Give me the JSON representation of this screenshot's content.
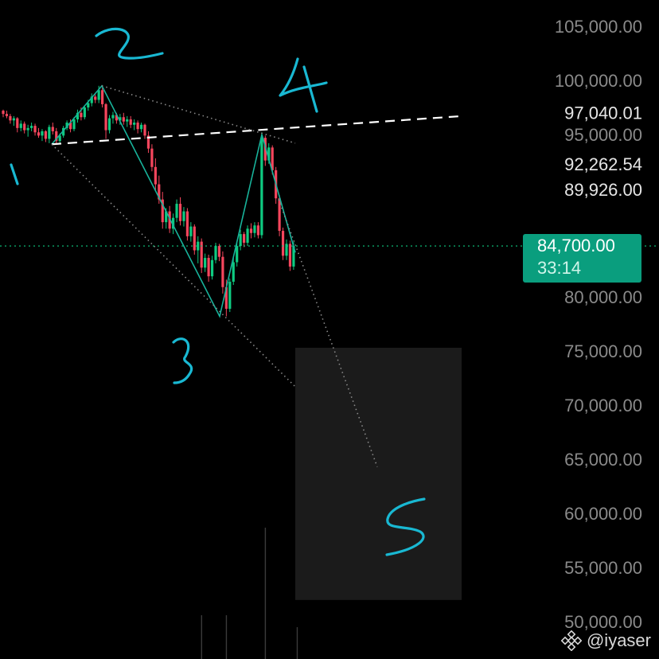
{
  "colors": {
    "background": "#000000",
    "up": "#0ecb81",
    "down": "#f6465d",
    "wave_line": "#18b39b",
    "annotation": "#19b8d2",
    "trendline_dashed": "#ffffff",
    "projection_dotted": "#8a8a8a",
    "target_box": "#1b1b1b",
    "price_tag_bg": "#0a9e7e",
    "axis_text": "#8a8a8a",
    "axis_text_highlight": "#e6e6e6"
  },
  "current_price": {
    "price": "84,700.00",
    "countdown": "33:14"
  },
  "watermark": {
    "text": "@iyaser",
    "icon": "binance-logo-icon"
  },
  "wave_labels": [
    "1",
    "2",
    "3",
    "4",
    "5"
  ],
  "chart_data": {
    "type": "candlestick",
    "y_axis": {
      "ylim": [
        49500,
        106500
      ],
      "ticks": [
        105000,
        100000,
        95000,
        80000,
        75000,
        70000,
        65000,
        60000,
        55000,
        50000
      ],
      "tick_labels": [
        "105,000.00",
        "100,000.00",
        "95,000.00",
        "80,000.00",
        "75,000.00",
        "70,000.00",
        "65,000.00",
        "60,000.00",
        "55,000.00",
        "50,000.00"
      ],
      "highlighted_levels": [
        97040.01,
        92262.54,
        89926.0
      ],
      "highlighted_labels": [
        "97,040.01",
        "92,262.54",
        "89,926.00"
      ]
    },
    "current_price_line": 84700,
    "wave_points": [
      {
        "label": "1",
        "price": 94100
      },
      {
        "label": "2",
        "price": 99500
      },
      {
        "label": "3",
        "price": 78200
      },
      {
        "label": "4",
        "price": 95000
      }
    ],
    "target_zone": {
      "from": 52000,
      "to": 75300,
      "label": "5"
    },
    "trendline_dashed": {
      "from_price": 94100,
      "to_price": 96700
    },
    "projection_end_price": 64300,
    "candles": [
      [
        97200,
        97300,
        96600,
        96900
      ],
      [
        96900,
        97200,
        96500,
        96700
      ],
      [
        96700,
        96900,
        96000,
        96300
      ],
      [
        96300,
        96700,
        95800,
        96500
      ],
      [
        96500,
        96600,
        95200,
        95600
      ],
      [
        95600,
        96300,
        95300,
        96000
      ],
      [
        96000,
        96200,
        95100,
        95400
      ],
      [
        95400,
        95900,
        94800,
        95600
      ],
      [
        95600,
        96100,
        95300,
        95800
      ],
      [
        95800,
        96000,
        94900,
        95200
      ],
      [
        95200,
        95600,
        94700,
        94900
      ],
      [
        94900,
        95500,
        94400,
        95300
      ],
      [
        95300,
        95400,
        94300,
        94600
      ],
      [
        94600,
        95900,
        94200,
        95700
      ],
      [
        95700,
        96100,
        95000,
        95300
      ],
      [
        95300,
        95600,
        94100,
        94400
      ],
      [
        94400,
        95100,
        94100,
        94900
      ],
      [
        94900,
        95800,
        94700,
        95600
      ],
      [
        95600,
        96300,
        95400,
        96100
      ],
      [
        96100,
        96400,
        95200,
        95500
      ],
      [
        95500,
        96600,
        95300,
        96400
      ],
      [
        96400,
        97300,
        96100,
        97000
      ],
      [
        97000,
        97500,
        96300,
        96600
      ],
      [
        96600,
        97700,
        96400,
        97500
      ],
      [
        97500,
        98200,
        97200,
        97900
      ],
      [
        97900,
        98800,
        97600,
        98500
      ],
      [
        98500,
        98700,
        97900,
        98200
      ],
      [
        98200,
        99500,
        97900,
        99100
      ],
      [
        99100,
        99300,
        97500,
        97800
      ],
      [
        97800,
        97900,
        94600,
        95400
      ],
      [
        95400,
        96800,
        95100,
        96500
      ],
      [
        96500,
        97100,
        96000,
        96800
      ],
      [
        96800,
        97000,
        96000,
        96300
      ],
      [
        96300,
        96900,
        95900,
        96600
      ],
      [
        96600,
        97000,
        95900,
        96200
      ],
      [
        96200,
        96700,
        95700,
        96400
      ],
      [
        96400,
        96700,
        95600,
        95900
      ],
      [
        95900,
        96400,
        95400,
        96100
      ],
      [
        96100,
        96300,
        95100,
        95500
      ],
      [
        95500,
        96100,
        95200,
        95900
      ],
      [
        95900,
        96000,
        94600,
        94900
      ],
      [
        94900,
        95300,
        93300,
        93700
      ],
      [
        93700,
        94100,
        91600,
        92000
      ],
      [
        92000,
        92800,
        89800,
        90400
      ],
      [
        90400,
        91200,
        88600,
        89000
      ],
      [
        89000,
        89700,
        86300,
        86900
      ],
      [
        86900,
        88200,
        86300,
        87900
      ],
      [
        87900,
        88400,
        85900,
        86300
      ],
      [
        86300,
        87700,
        85800,
        87300
      ],
      [
        87300,
        89000,
        86900,
        88600
      ],
      [
        88600,
        89200,
        86600,
        87000
      ],
      [
        87000,
        88300,
        86500,
        87900
      ],
      [
        87900,
        88200,
        85200,
        85600
      ],
      [
        85600,
        86900,
        85100,
        86500
      ],
      [
        86500,
        86700,
        83900,
        84300
      ],
      [
        84300,
        85600,
        83100,
        85100
      ],
      [
        85100,
        85400,
        82200,
        82700
      ],
      [
        82700,
        84000,
        82300,
        83600
      ],
      [
        83600,
        83900,
        81400,
        81900
      ],
      [
        81900,
        83800,
        81600,
        83400
      ],
      [
        83400,
        85000,
        83100,
        84700
      ],
      [
        84700,
        84900,
        83300,
        83700
      ],
      [
        83700,
        84200,
        80300,
        80900
      ],
      [
        80900,
        81600,
        78200,
        78900
      ],
      [
        78900,
        81700,
        78600,
        81400
      ],
      [
        81400,
        83600,
        81100,
        83200
      ],
      [
        83200,
        85100,
        82800,
        84700
      ],
      [
        84700,
        86200,
        84300,
        85800
      ],
      [
        85800,
        86000,
        84600,
        85000
      ],
      [
        85000,
        86600,
        84700,
        86300
      ],
      [
        86300,
        86800,
        85400,
        85900
      ],
      [
        85900,
        86900,
        85500,
        86600
      ],
      [
        86600,
        86900,
        85400,
        85700
      ],
      [
        85700,
        95200,
        85400,
        94700
      ],
      [
        94700,
        94900,
        92100,
        92600
      ],
      [
        92600,
        94200,
        92300,
        93800
      ],
      [
        93800,
        94000,
        91300,
        91700
      ],
      [
        91700,
        92000,
        88600,
        89100
      ],
      [
        89100,
        89400,
        85600,
        86100
      ],
      [
        86100,
        86400,
        83400,
        83800
      ],
      [
        83800,
        85300,
        83400,
        84900
      ],
      [
        84900,
        85200,
        82400,
        82800
      ],
      [
        82800,
        85100,
        82500,
        84700
      ]
    ],
    "volume_bars": [
      {
        "candle": 56,
        "value": 0.11
      },
      {
        "candle": 63,
        "value": 0.11
      },
      {
        "candle": 74,
        "value": 0.33
      },
      {
        "candle": 83,
        "value": 0.08
      }
    ]
  }
}
